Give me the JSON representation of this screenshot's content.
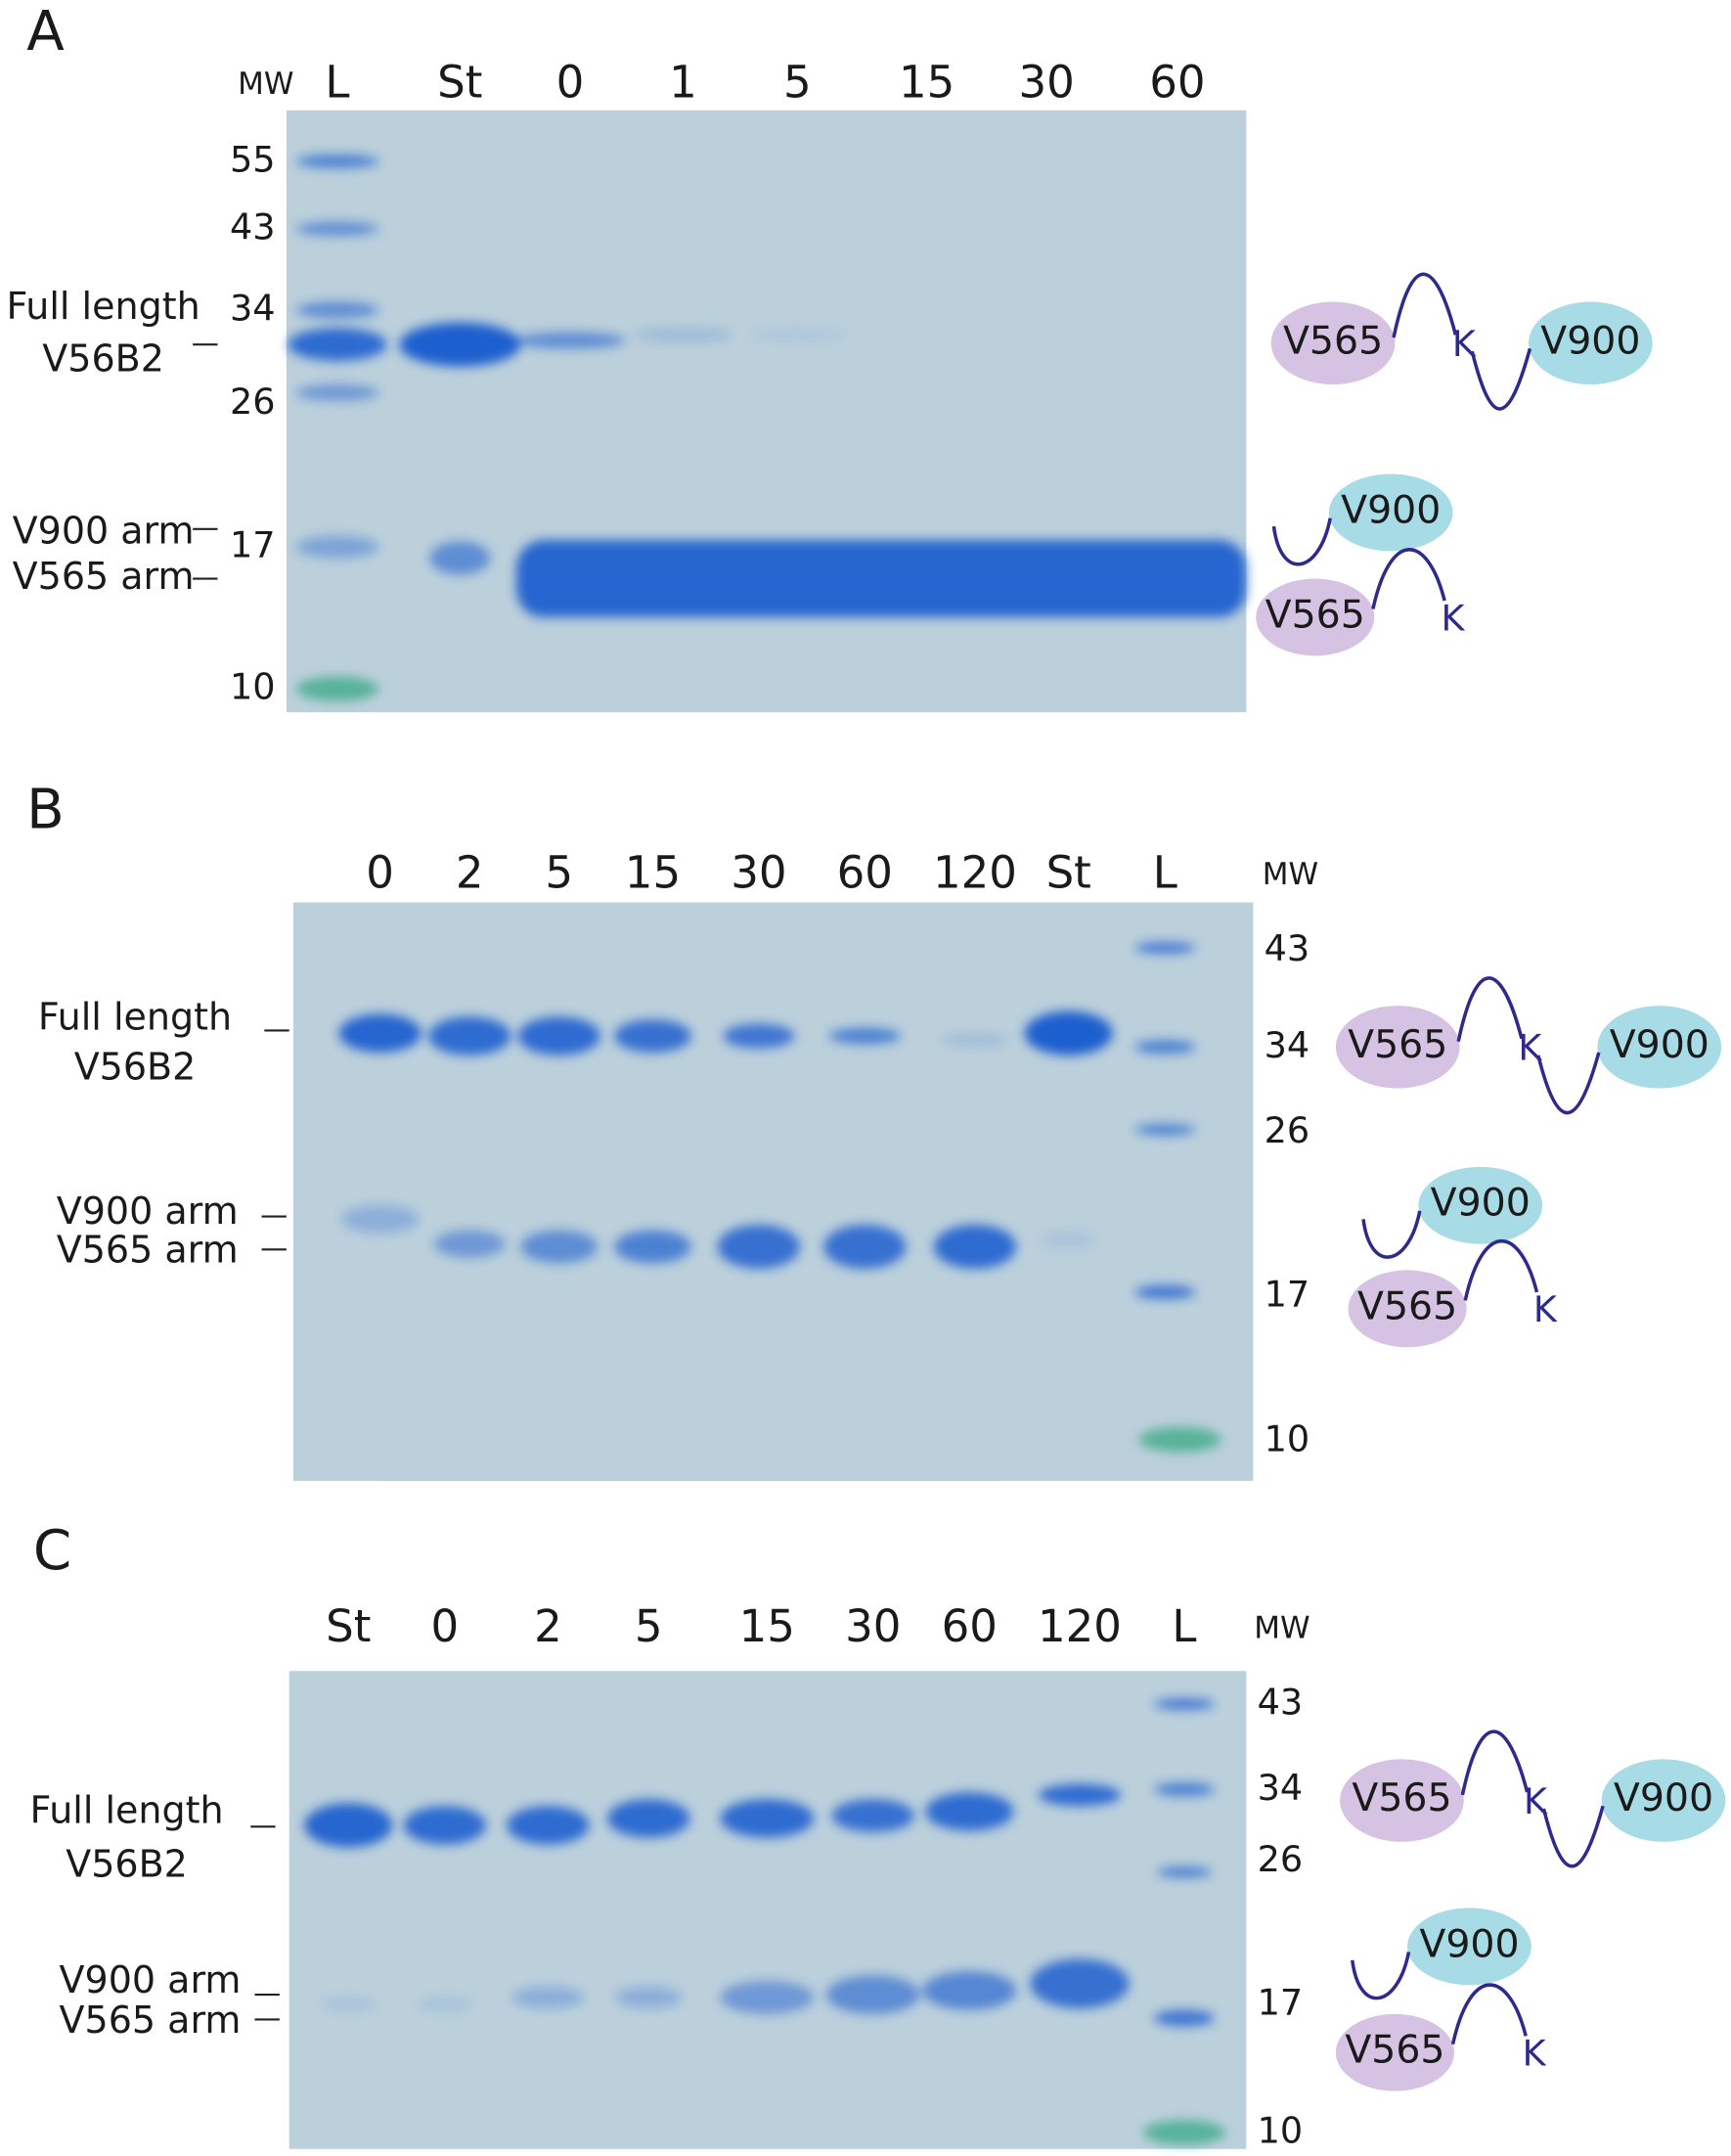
{
  "panels": [
    {
      "label": "A",
      "mw_header": "MW",
      "lanes": [
        "L",
        "St",
        "0",
        "1",
        "5",
        "15",
        "30",
        "60"
      ],
      "mw_markers": [
        "55",
        "43",
        "34",
        "26",
        "17",
        "10"
      ],
      "band_labels": [
        "Full length",
        "V56B2",
        "V900 arm",
        "V565 arm"
      ],
      "full_schematic": [
        "V565",
        "K",
        "V900"
      ],
      "arm_schematic": [
        "V900",
        "V565",
        "K"
      ]
    },
    {
      "label": "B",
      "mw_header": "MW",
      "lanes": [
        "0",
        "2",
        "5",
        "15",
        "30",
        "60",
        "120",
        "St",
        "L"
      ],
      "mw_markers": [
        "43",
        "34",
        "26",
        "17",
        "10"
      ],
      "band_labels": [
        "Full length",
        "V56B2",
        "V900 arm",
        "V565 arm"
      ],
      "full_schematic": [
        "V565",
        "K",
        "V900"
      ],
      "arm_schematic": [
        "V900",
        "V565",
        "K"
      ]
    },
    {
      "label": "C",
      "mw_header": "MW",
      "lanes": [
        "St",
        "0",
        "2",
        "5",
        "15",
        "30",
        "60",
        "120",
        "L"
      ],
      "mw_markers": [
        "43",
        "34",
        "26",
        "17",
        "10"
      ],
      "band_labels": [
        "Full length",
        "V56B2",
        "V900 arm",
        "V565 arm"
      ],
      "full_schematic": [
        "V565",
        "K",
        "V900"
      ],
      "arm_schematic": [
        "V900",
        "V565",
        "K"
      ]
    }
  ]
}
